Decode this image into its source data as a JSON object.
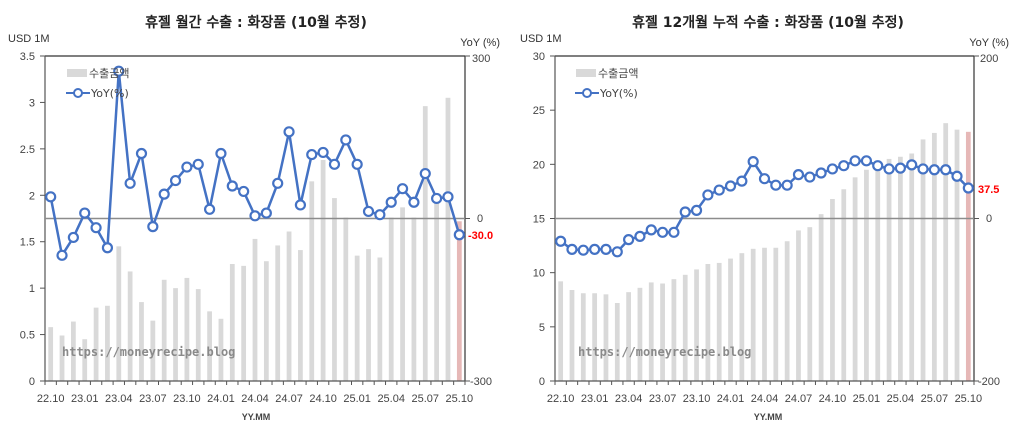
{
  "charts": [
    {
      "title": "휴젤 월간 수출 : 화장품 (10월 추정)",
      "left_unit": "USD 1M",
      "right_unit": "YoY (%)",
      "xlabel": "YY.MM",
      "watermark": "https://moneyrecipe.blog",
      "legend": {
        "bar": "수출금액",
        "line": "YoY(%)"
      },
      "left_ticks": [
        "0",
        "0.5",
        "1",
        "1.5",
        "2",
        "2.5",
        "3",
        "3.5"
      ],
      "right_ticks": {
        "top": "300",
        "zero": "0",
        "bottom": "-300"
      },
      "x_ticks": [
        "22.10",
        "23.01",
        "23.04",
        "23.07",
        "23.10",
        "24.01",
        "24.04",
        "24.07",
        "24.10",
        "25.01",
        "25.04",
        "25.07",
        "25.10"
      ],
      "last_label": "-30.0"
    },
    {
      "title": "휴젤 12개월 누적 수출 : 화장품 (10월 추정)",
      "left_unit": "USD 1M",
      "right_unit": "YoY (%)",
      "xlabel": "YY.MM",
      "watermark": "https://moneyrecipe.blog",
      "legend": {
        "bar": "수출금액",
        "line": "YoY(%)"
      },
      "left_ticks": [
        "0",
        "5",
        "10",
        "15",
        "20",
        "25",
        "30"
      ],
      "right_ticks": {
        "top": "200",
        "zero": "0",
        "bottom": "-200"
      },
      "x_ticks": [
        "22.10",
        "23.01",
        "23.04",
        "23.07",
        "23.10",
        "24.01",
        "24.04",
        "24.07",
        "24.10",
        "25.01",
        "25.04",
        "25.07",
        "25.10"
      ],
      "last_label": "37.5"
    }
  ],
  "colors": {
    "bar": "#d9d9d9",
    "bar_last": "#e6b8b7",
    "line": "#4472c4",
    "zero_line": "#8c8c8c",
    "last_label": "#ff0000"
  },
  "chart_data": [
    {
      "type": "bar+line",
      "title": "휴젤 월간 수출 : 화장품 (10월 추정)",
      "xlabel": "YY.MM",
      "ylabel": "USD 1M",
      "y2label": "YoY (%)",
      "ylim": [
        0,
        3.5
      ],
      "y2lim": [
        -300,
        300
      ],
      "legend_position": "top-left",
      "categories": [
        "22.10",
        "22.11",
        "22.12",
        "23.01",
        "23.02",
        "23.03",
        "23.04",
        "23.05",
        "23.06",
        "23.07",
        "23.08",
        "23.09",
        "23.10",
        "23.11",
        "23.12",
        "24.01",
        "24.02",
        "24.03",
        "24.04",
        "24.05",
        "24.06",
        "24.07",
        "24.08",
        "24.09",
        "24.10",
        "24.11",
        "24.12",
        "25.01",
        "25.02",
        "25.03",
        "25.04",
        "25.05",
        "25.06",
        "25.07",
        "25.08",
        "25.09",
        "25.10"
      ],
      "series": [
        {
          "name": "수출금액",
          "axis": "left",
          "type": "bar",
          "values": [
            0.58,
            0.49,
            0.64,
            0.45,
            0.79,
            0.81,
            1.45,
            1.18,
            0.85,
            0.65,
            1.09,
            1.0,
            1.11,
            0.99,
            0.75,
            0.67,
            1.26,
            1.24,
            1.53,
            1.29,
            1.46,
            1.61,
            1.41,
            2.15,
            2.38,
            1.97,
            1.76,
            1.35,
            1.42,
            1.33,
            1.76,
            1.87,
            1.76,
            2.96,
            1.97,
            3.05,
            1.72
          ]
        },
        {
          "name": "YoY(%)",
          "axis": "right",
          "type": "line",
          "values": [
            40,
            -68,
            -35,
            10,
            -17,
            -54,
            272,
            65,
            120,
            -15,
            45,
            70,
            95,
            100,
            17,
            120,
            60,
            50,
            5,
            10,
            65,
            160,
            25,
            118,
            122,
            100,
            145,
            100,
            13,
            7,
            30,
            55,
            30,
            83,
            37,
            40,
            -30.0
          ]
        }
      ],
      "annotations": [
        "-30.0"
      ]
    },
    {
      "type": "bar+line",
      "title": "휴젤 12개월 누적 수출 : 화장품 (10월 추정)",
      "xlabel": "YY.MM",
      "ylabel": "USD 1M",
      "y2label": "YoY (%)",
      "ylim": [
        0,
        30
      ],
      "y2lim": [
        -200,
        200
      ],
      "legend_position": "top-left",
      "categories": [
        "22.10",
        "22.11",
        "22.12",
        "23.01",
        "23.02",
        "23.03",
        "23.04",
        "23.05",
        "23.06",
        "23.07",
        "23.08",
        "23.09",
        "23.10",
        "23.11",
        "23.12",
        "24.01",
        "24.02",
        "24.03",
        "24.04",
        "24.05",
        "24.06",
        "24.07",
        "24.08",
        "24.09",
        "24.10",
        "24.11",
        "24.12",
        "25.01",
        "25.02",
        "25.03",
        "25.04",
        "25.05",
        "25.06",
        "25.07",
        "25.08",
        "25.09",
        "25.10"
      ],
      "series": [
        {
          "name": "수출금액",
          "axis": "left",
          "type": "bar",
          "values": [
            9.2,
            8.4,
            8.1,
            8.1,
            8.0,
            7.2,
            8.2,
            8.6,
            9.1,
            9.0,
            9.4,
            9.8,
            10.3,
            10.8,
            10.9,
            11.3,
            11.8,
            12.2,
            12.3,
            12.3,
            12.9,
            13.9,
            14.2,
            15.4,
            16.8,
            17.7,
            18.8,
            19.5,
            20.3,
            20.5,
            20.7,
            21.0,
            22.3,
            22.9,
            23.8,
            23.2,
            23.0
          ]
        },
        {
          "name": "YoY(%)",
          "axis": "right",
          "type": "line",
          "values": [
            -28,
            -38,
            -39,
            -38,
            -38,
            -41,
            -26,
            -22,
            -14,
            -17,
            -17,
            8,
            10,
            29,
            35,
            40,
            46,
            70,
            49,
            41,
            41,
            54,
            51,
            56,
            61,
            65,
            71,
            71,
            65,
            61,
            62,
            66,
            61,
            60,
            60,
            52,
            37.5
          ]
        }
      ],
      "annotations": [
        "37.5"
      ]
    }
  ]
}
